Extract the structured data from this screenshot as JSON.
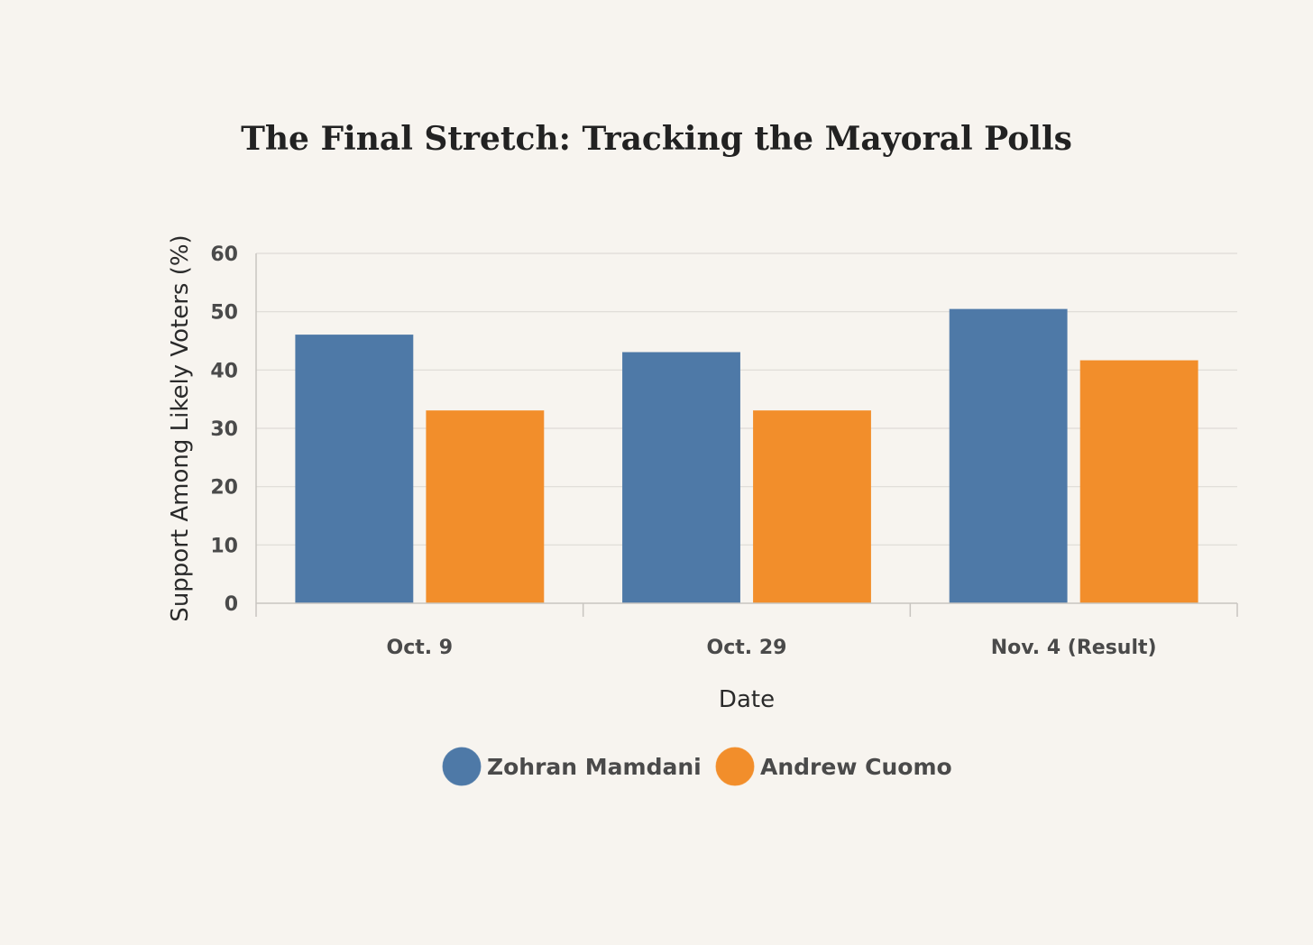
{
  "chart_data": {
    "type": "bar",
    "title": "The Final Stretch: Tracking the Mayoral Polls",
    "xlabel": "Date",
    "ylabel": "Support Among Likely Voters (%)",
    "categories": [
      "Oct. 9",
      "Oct. 29",
      "Nov. 4 (Result)"
    ],
    "ylim": [
      0,
      60
    ],
    "yticks": [
      0,
      10,
      20,
      30,
      40,
      50,
      60
    ],
    "grid": true,
    "legend_position": "bottom-center",
    "series": [
      {
        "name": "Zohran Mamdani",
        "values": [
          46,
          43,
          50.4
        ],
        "color": "#4e79a7"
      },
      {
        "name": "Andrew Cuomo",
        "values": [
          33,
          33,
          41.6
        ],
        "color": "#f28e2b"
      }
    ]
  }
}
